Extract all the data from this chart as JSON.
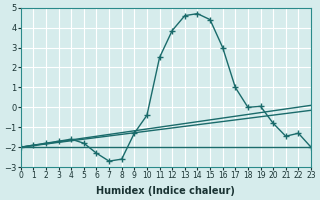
{
  "xlabel": "Humidex (Indice chaleur)",
  "ylabel": "",
  "bg_color": "#d6ecec",
  "grid_color": "#ffffff",
  "line_color": "#1a6b6b",
  "xlim": [
    0,
    23
  ],
  "ylim": [
    -3,
    5
  ],
  "xticks": [
    0,
    1,
    2,
    3,
    4,
    5,
    6,
    7,
    8,
    9,
    10,
    11,
    12,
    13,
    14,
    15,
    16,
    17,
    18,
    19,
    20,
    21,
    22,
    23
  ],
  "yticks": [
    -3,
    -2,
    -1,
    0,
    1,
    2,
    3,
    4,
    5
  ],
  "main_x": [
    0,
    1,
    2,
    3,
    4,
    5,
    6,
    7,
    8,
    9,
    10,
    11,
    12,
    13,
    14,
    15,
    16,
    17,
    18,
    19,
    20,
    21,
    22,
    23
  ],
  "main_y": [
    -2.0,
    -1.9,
    -1.8,
    -1.7,
    -1.6,
    -1.8,
    -2.3,
    -2.7,
    -2.6,
    -1.3,
    -0.4,
    2.5,
    3.85,
    4.6,
    4.7,
    4.4,
    3.0,
    1.0,
    0.0,
    0.05,
    -0.8,
    -1.45,
    -1.3,
    -2.0
  ],
  "line1_x": [
    0,
    23
  ],
  "line1_y": [
    -2.0,
    -2.0
  ],
  "line2_x": [
    0,
    23
  ],
  "line2_y": [
    -2.0,
    -0.15
  ],
  "line3_x": [
    0,
    23
  ],
  "line3_y": [
    -2.0,
    0.1
  ]
}
